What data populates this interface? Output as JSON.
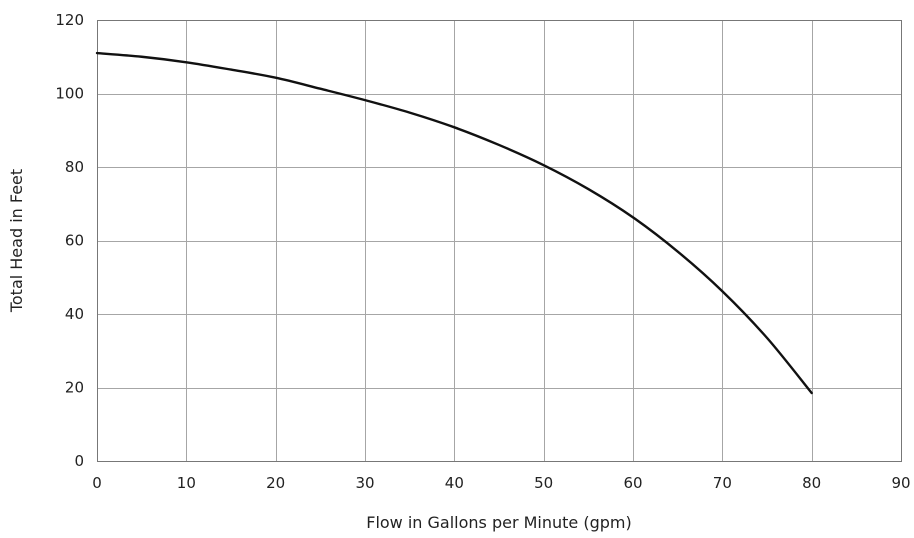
{
  "chart_data": {
    "type": "line",
    "title": "",
    "xlabel": "Flow in Gallons per Minute (gpm)",
    "ylabel": "Total Head in Feet",
    "xlim": [
      0,
      90
    ],
    "ylim": [
      0,
      120
    ],
    "x_ticks": [
      0,
      10,
      20,
      30,
      40,
      50,
      60,
      70,
      80,
      90
    ],
    "y_ticks": [
      0,
      20,
      40,
      60,
      80,
      100,
      120
    ],
    "grid": true,
    "legend": "none",
    "series": [
      {
        "color": "#111111",
        "x": [
          0,
          5,
          10,
          15,
          20,
          25,
          30,
          35,
          40,
          45,
          50,
          55,
          60,
          65,
          70,
          75,
          80
        ],
        "y": [
          111,
          110,
          108.5,
          106.5,
          104.3,
          101.3,
          98.2,
          94.8,
          90.8,
          86.0,
          80.5,
          74.0,
          66.3,
          57.0,
          46.2,
          33.5,
          18.5
        ]
      }
    ]
  }
}
